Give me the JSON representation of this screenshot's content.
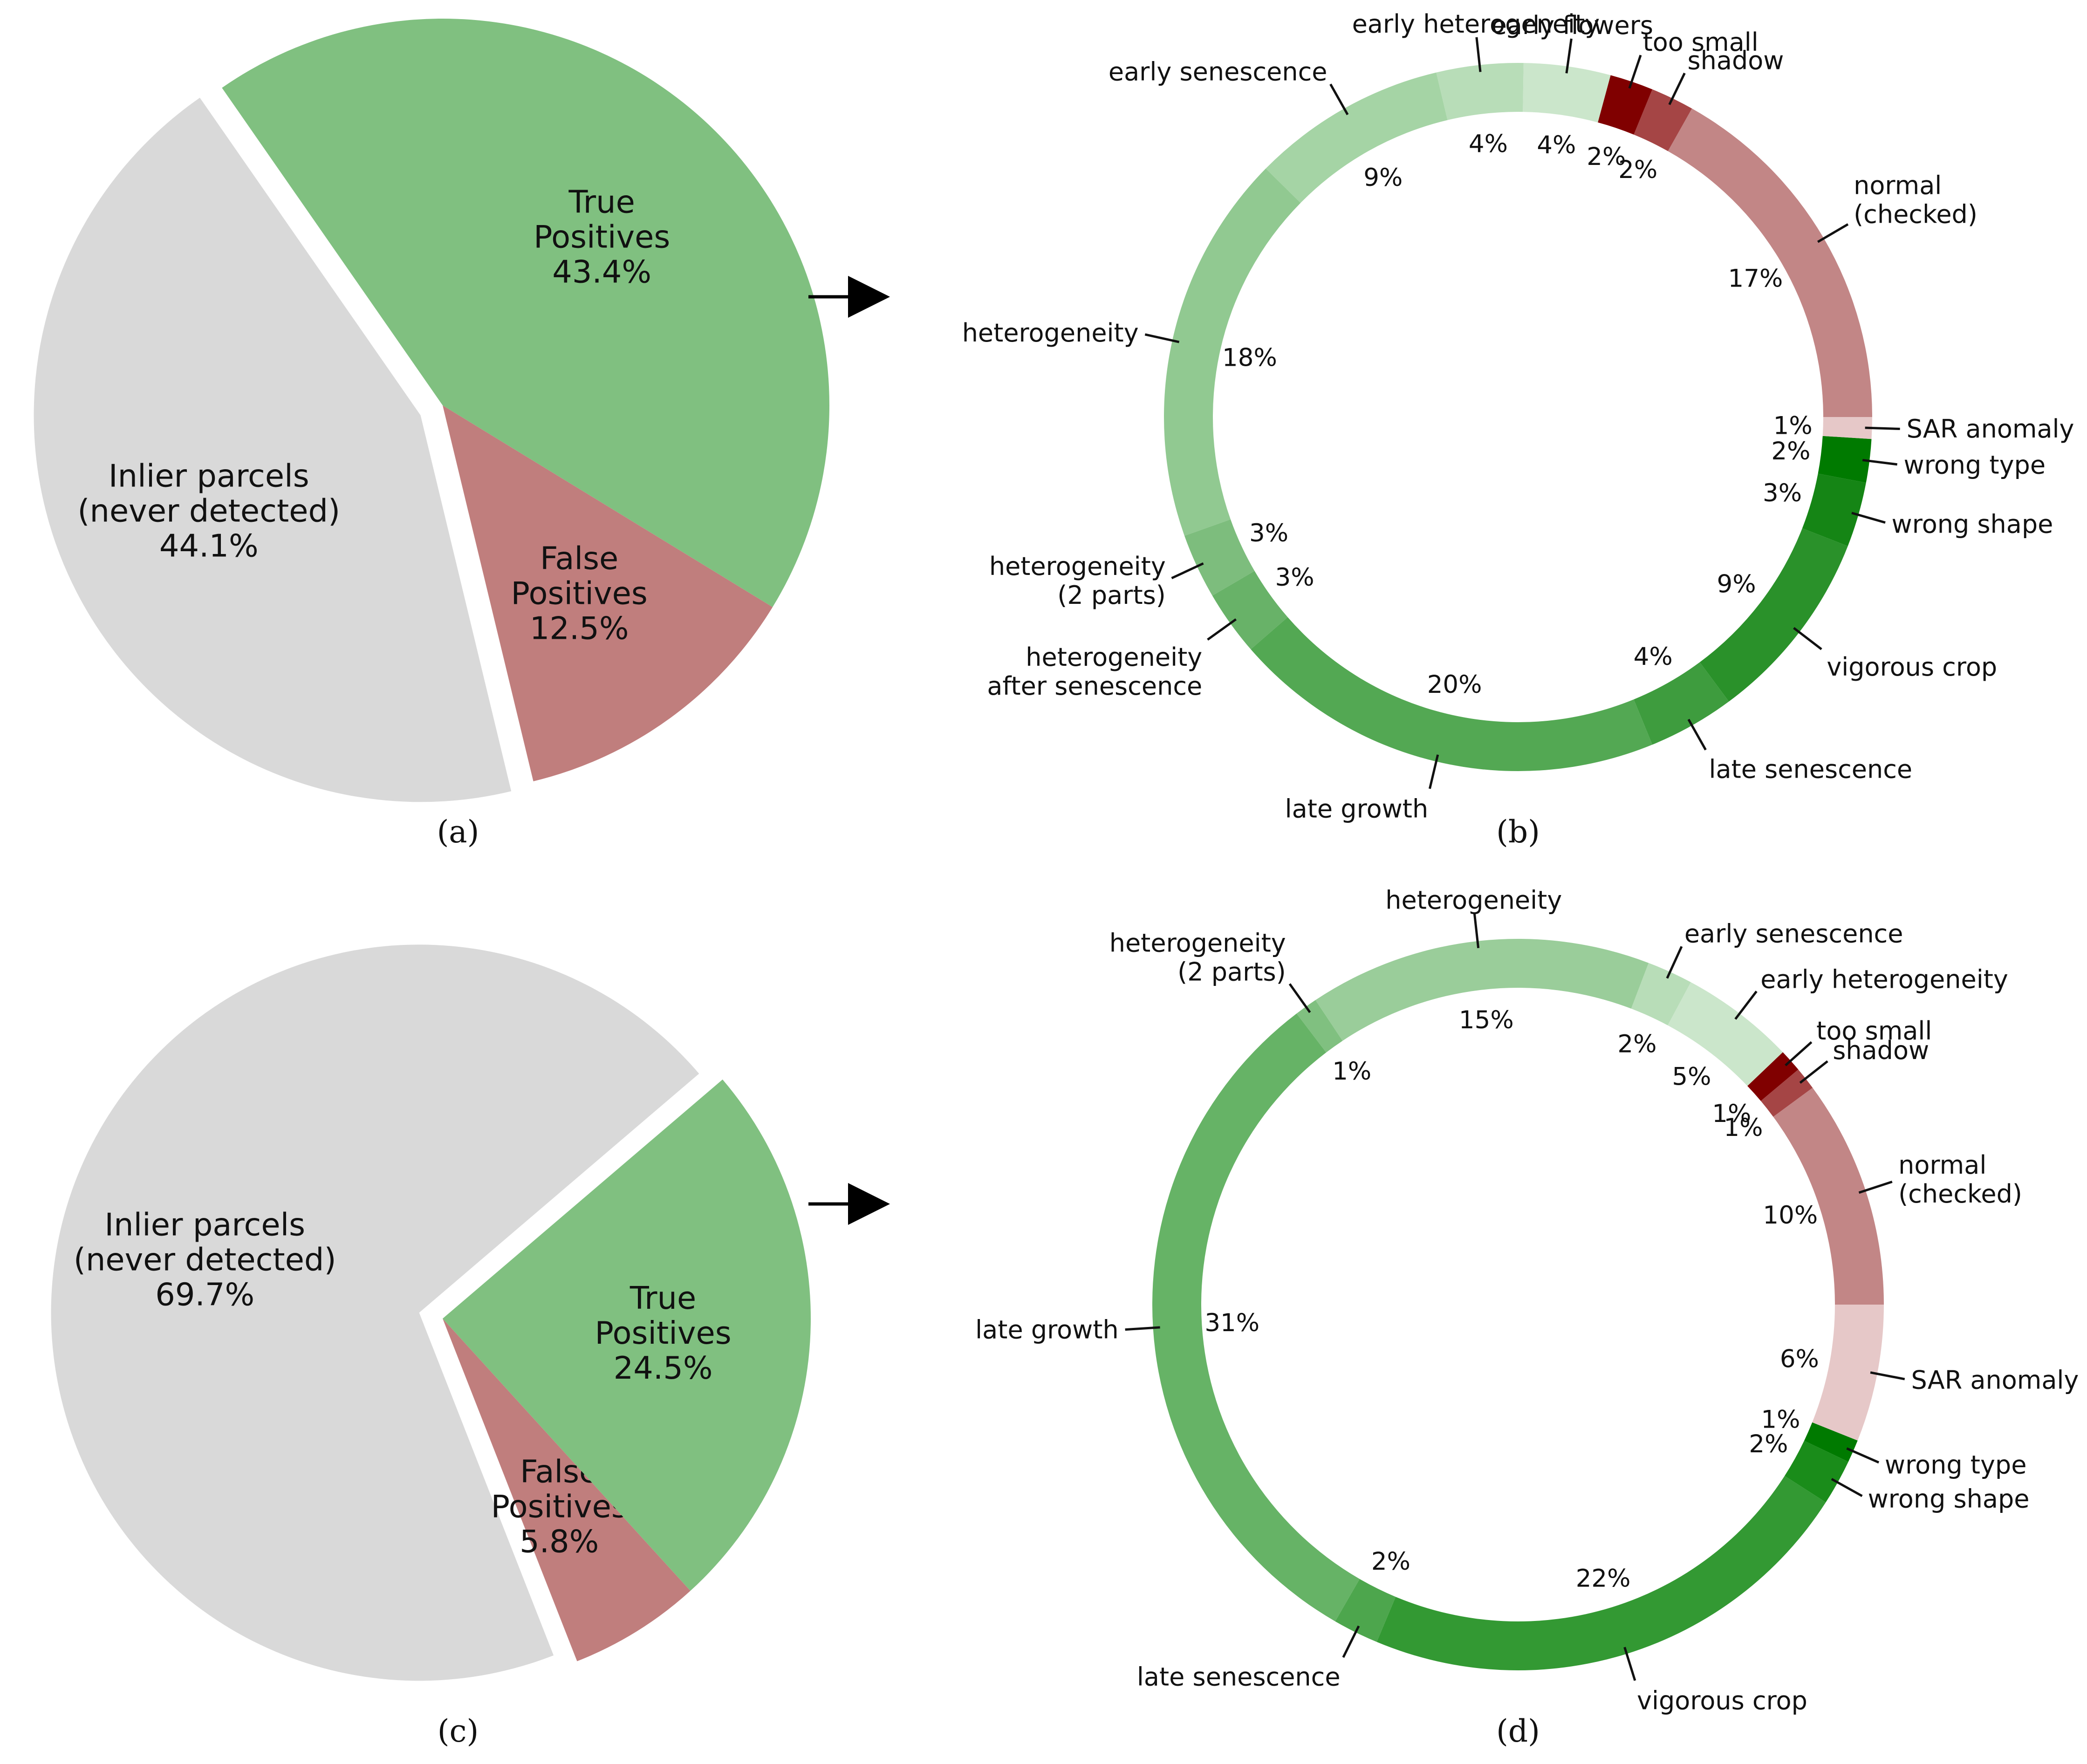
{
  "chart_data": [
    {
      "type": "pie",
      "panel": "a",
      "caption": "(a)",
      "slices": [
        {
          "label": [
            "Inlier parcels",
            "(never detected)"
          ],
          "value": 44.1,
          "value_label": "44.1%",
          "color": "#d9d9d9",
          "exploded": true
        },
        {
          "label": [
            "False",
            "Positives"
          ],
          "value": 12.5,
          "value_label": "12.5%",
          "color": "#c07e7d",
          "exploded": false
        },
        {
          "label": [
            "True",
            "Positives"
          ],
          "value": 43.4,
          "value_label": "43.4%",
          "color": "#80c080",
          "exploded": false
        }
      ]
    },
    {
      "type": "pie",
      "subtype": "donut",
      "panel": "b",
      "caption": "(b)",
      "slices": [
        {
          "label": [
            "normal",
            "(checked)"
          ],
          "value": 17,
          "value_label": "17%",
          "color": "#c28686"
        },
        {
          "label": [
            "shadow"
          ],
          "value": 2,
          "value_label": "2%",
          "color": "#a54545"
        },
        {
          "label": [
            "too small"
          ],
          "value": 2,
          "value_label": "2%",
          "color": "#800000"
        },
        {
          "label": [
            "early flowers"
          ],
          "value": 4,
          "value_label": "4%",
          "color": "#cbe6cb"
        },
        {
          "label": [
            "early heterogeneity"
          ],
          "value": 4,
          "value_label": "4%",
          "color": "#b8ddb8"
        },
        {
          "label": [
            "early senescence"
          ],
          "value": 9,
          "value_label": "9%",
          "color": "#a5d4a5"
        },
        {
          "label": [
            "heterogeneity"
          ],
          "value": 18,
          "value_label": "18%",
          "color": "#91c991"
        },
        {
          "label": [
            "heterogeneity",
            "(2 parts)"
          ],
          "value": 3,
          "value_label": "3%",
          "color": "#7dbd7d"
        },
        {
          "label": [
            "heterogeneity",
            "after senescence"
          ],
          "value": 3,
          "value_label": "3%",
          "color": "#68b268"
        },
        {
          "label": [
            "late growth"
          ],
          "value": 20,
          "value_label": "20%",
          "color": "#53a853"
        },
        {
          "label": [
            "late senescence"
          ],
          "value": 4,
          "value_label": "4%",
          "color": "#3e9c3e"
        },
        {
          "label": [
            "vigorous crop"
          ],
          "value": 9,
          "value_label": "9%",
          "color": "#2a912a"
        },
        {
          "label": [
            "wrong shape"
          ],
          "value": 3,
          "value_label": "3%",
          "color": "#158515"
        },
        {
          "label": [
            "wrong type"
          ],
          "value": 2,
          "value_label": "2%",
          "color": "#007a00"
        },
        {
          "label": [
            "SAR anomaly"
          ],
          "value": 1,
          "value_label": "1%",
          "color": "#e6c8c8"
        }
      ]
    },
    {
      "type": "pie",
      "panel": "c",
      "caption": "(c)",
      "slices": [
        {
          "label": [
            "Inlier parcels",
            "(never detected)"
          ],
          "value": 69.7,
          "value_label": "69.7%",
          "color": "#d9d9d9",
          "exploded": true
        },
        {
          "label": [
            "False",
            "Positives"
          ],
          "value": 5.8,
          "value_label": "5.8%",
          "color": "#c07e7d",
          "exploded": false
        },
        {
          "label": [
            "True",
            "Positives"
          ],
          "value": 24.5,
          "value_label": "24.5%",
          "color": "#80c080",
          "exploded": false
        }
      ]
    },
    {
      "type": "pie",
      "subtype": "donut",
      "panel": "d",
      "caption": "(d)",
      "slices": [
        {
          "label": [
            "normal",
            "(checked)"
          ],
          "value": 10,
          "value_label": "10%",
          "color": "#c28686"
        },
        {
          "label": [
            "shadow"
          ],
          "value": 1,
          "value_label": "1%",
          "color": "#a54545"
        },
        {
          "label": [
            "too small"
          ],
          "value": 1,
          "value_label": "1%",
          "color": "#800000"
        },
        {
          "label": [
            "early heterogeneity"
          ],
          "value": 5,
          "value_label": "5%",
          "color": "#cbe6cb"
        },
        {
          "label": [
            "early senescence"
          ],
          "value": 2,
          "value_label": "2%",
          "color": "#b8ddb8"
        },
        {
          "label": [
            "heterogeneity"
          ],
          "value": 15,
          "value_label": "15%",
          "color": "#9acd9a"
        },
        {
          "label": [
            "heterogeneity",
            "(2 parts)"
          ],
          "value": 1,
          "value_label": "1%",
          "color": "#80c080"
        },
        {
          "label": [
            "late growth"
          ],
          "value": 31,
          "value_label": "31%",
          "color": "#66b366"
        },
        {
          "label": [
            "late senescence"
          ],
          "value": 2,
          "value_label": "2%",
          "color": "#4da64d"
        },
        {
          "label": [
            "vigorous crop"
          ],
          "value": 22,
          "value_label": "22%",
          "color": "#339933"
        },
        {
          "label": [
            "wrong shape"
          ],
          "value": 2,
          "value_label": "2%",
          "color": "#1a8c1a"
        },
        {
          "label": [
            "wrong type"
          ],
          "value": 1,
          "value_label": "1%",
          "color": "#007a00"
        },
        {
          "label": [
            "SAR anomaly"
          ],
          "value": 6,
          "value_label": "6%",
          "color": "#e6c8c8"
        }
      ]
    }
  ]
}
